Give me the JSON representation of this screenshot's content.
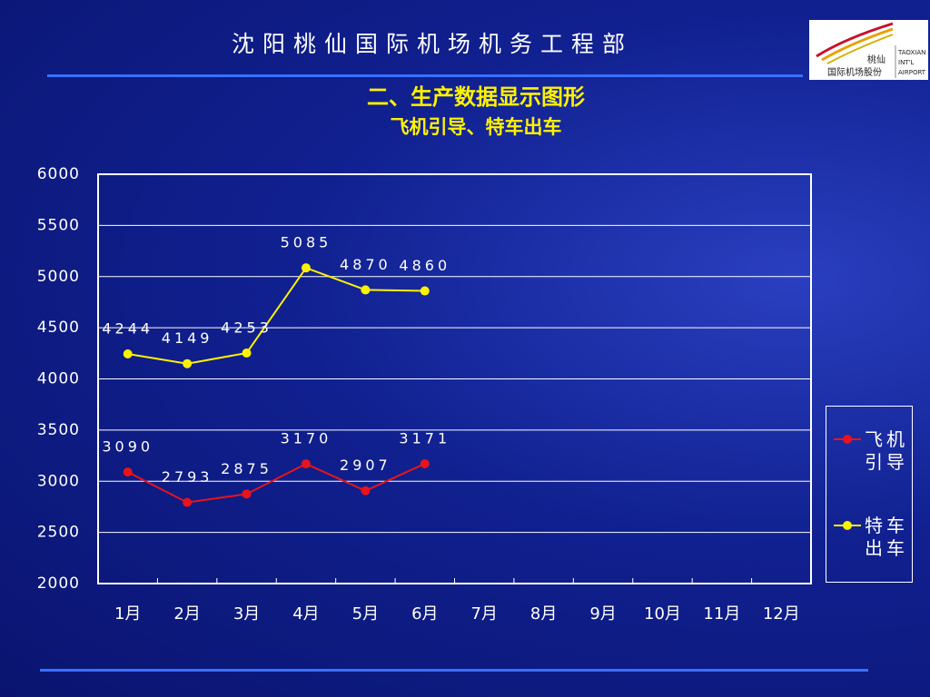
{
  "header": {
    "title": "沈阳桃仙国际机场机务工程部"
  },
  "logo": {
    "name_cn": "桃仙",
    "company": "国际机场股份",
    "line1": "TAOXIAN",
    "line2": "INT'L",
    "line3": "AIRPORT"
  },
  "chart_data": {
    "type": "line",
    "title": "二、生产数据显示图形",
    "subtitle": "飞机引导、特车出车",
    "categories": [
      "1月",
      "2月",
      "3月",
      "4月",
      "5月",
      "6月",
      "7月",
      "8月",
      "9月",
      "10月",
      "11月",
      "12月"
    ],
    "series": [
      {
        "name": "飞机引导",
        "color": "#e8141c",
        "values": [
          3090,
          2793,
          2875,
          3170,
          2907,
          3171,
          null,
          null,
          null,
          null,
          null,
          null
        ]
      },
      {
        "name": "特车出车",
        "color": "#fff200",
        "values": [
          4244,
          4149,
          4253,
          5085,
          4870,
          4860,
          null,
          null,
          null,
          null,
          null,
          null
        ]
      }
    ],
    "ylim": [
      2000,
      6000
    ],
    "yticks": [
      2000,
      2500,
      3000,
      3500,
      4000,
      4500,
      5000,
      5500,
      6000
    ],
    "grid": true,
    "legend": "right"
  }
}
